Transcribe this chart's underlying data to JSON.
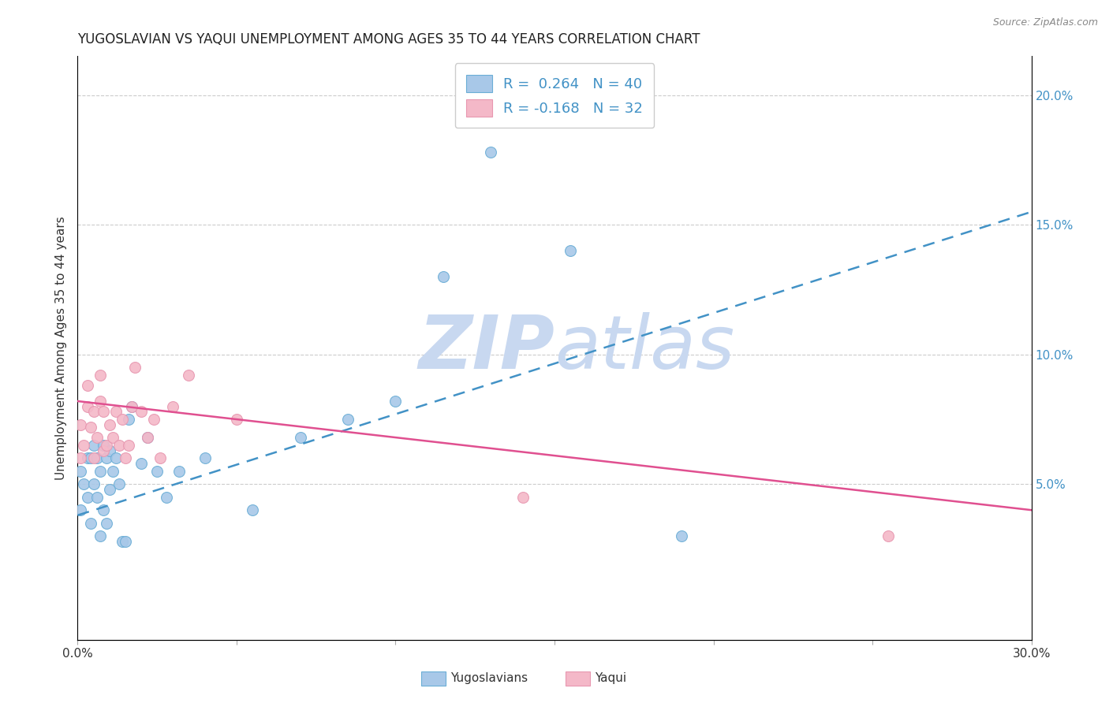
{
  "title": "YUGOSLAVIAN VS YAQUI UNEMPLOYMENT AMONG AGES 35 TO 44 YEARS CORRELATION CHART",
  "source": "Source: ZipAtlas.com",
  "ylabel": "Unemployment Among Ages 35 to 44 years",
  "xlim": [
    0.0,
    0.3
  ],
  "ylim": [
    -0.01,
    0.215
  ],
  "x_ticks": [
    0.0,
    0.05,
    0.1,
    0.15,
    0.2,
    0.25,
    0.3
  ],
  "x_tick_labels": [
    "0.0%",
    "",
    "",
    "",
    "",
    "",
    "30.0%"
  ],
  "y_ticks_right": [
    0.05,
    0.1,
    0.15,
    0.2
  ],
  "y_tick_labels_right": [
    "5.0%",
    "10.0%",
    "15.0%",
    "20.0%"
  ],
  "color_blue": "#a8c8e8",
  "color_blue_edge": "#6baed6",
  "color_pink": "#f4b8c8",
  "color_pink_edge": "#e897b0",
  "color_line_blue": "#4292c6",
  "color_line_pink": "#e05090",
  "color_raxis": "#4292c6",
  "watermark_color": "#c8d8f0",
  "blue_line_x": [
    0.0,
    0.3
  ],
  "blue_line_y": [
    0.038,
    0.155
  ],
  "pink_line_x": [
    0.0,
    0.3
  ],
  "pink_line_y": [
    0.082,
    0.04
  ],
  "yugoslavians_x": [
    0.001,
    0.001,
    0.002,
    0.003,
    0.003,
    0.004,
    0.004,
    0.005,
    0.005,
    0.006,
    0.006,
    0.007,
    0.007,
    0.008,
    0.008,
    0.009,
    0.009,
    0.01,
    0.01,
    0.011,
    0.012,
    0.013,
    0.014,
    0.015,
    0.016,
    0.017,
    0.02,
    0.022,
    0.025,
    0.028,
    0.032,
    0.04,
    0.055,
    0.07,
    0.085,
    0.1,
    0.115,
    0.13,
    0.155,
    0.19
  ],
  "yugoslavians_y": [
    0.04,
    0.055,
    0.05,
    0.045,
    0.06,
    0.035,
    0.06,
    0.05,
    0.065,
    0.045,
    0.06,
    0.03,
    0.055,
    0.04,
    0.065,
    0.035,
    0.06,
    0.048,
    0.063,
    0.055,
    0.06,
    0.05,
    0.028,
    0.028,
    0.075,
    0.08,
    0.058,
    0.068,
    0.055,
    0.045,
    0.055,
    0.06,
    0.04,
    0.068,
    0.075,
    0.082,
    0.13,
    0.178,
    0.14,
    0.03
  ],
  "yaqui_x": [
    0.001,
    0.001,
    0.002,
    0.003,
    0.003,
    0.004,
    0.005,
    0.005,
    0.006,
    0.007,
    0.007,
    0.008,
    0.008,
    0.009,
    0.01,
    0.011,
    0.012,
    0.013,
    0.014,
    0.015,
    0.016,
    0.017,
    0.018,
    0.02,
    0.022,
    0.024,
    0.026,
    0.03,
    0.035,
    0.05,
    0.14,
    0.255
  ],
  "yaqui_y": [
    0.06,
    0.073,
    0.065,
    0.08,
    0.088,
    0.072,
    0.06,
    0.078,
    0.068,
    0.082,
    0.092,
    0.063,
    0.078,
    0.065,
    0.073,
    0.068,
    0.078,
    0.065,
    0.075,
    0.06,
    0.065,
    0.08,
    0.095,
    0.078,
    0.068,
    0.075,
    0.06,
    0.08,
    0.092,
    0.075,
    0.045,
    0.03
  ],
  "legend_line1": "R =  0.264   N = 40",
  "legend_line2": "R = -0.168   N = 32",
  "bottom_legend_labels": [
    "Yugoslavians",
    "Yaqui"
  ]
}
